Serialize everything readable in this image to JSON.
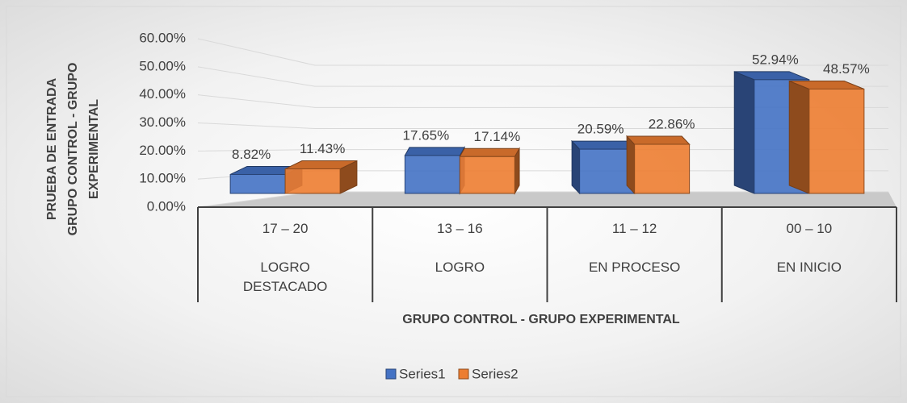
{
  "chart_data": {
    "type": "bar",
    "y_label_lines": [
      "PRUEBA DE ENTRADA",
      "GRUPO CONTROL - GRUPO",
      "EXPERIMENTAL"
    ],
    "x_label": "GRUPO CONTROL - GRUPO EXPERIMENTAL",
    "categories": [
      [
        "17 – 20",
        "LOGRO DESTACADO"
      ],
      [
        "13 – 16",
        "LOGRO"
      ],
      [
        "11 – 12",
        "EN PROCESO"
      ],
      [
        "00 – 10",
        "EN INICIO"
      ]
    ],
    "series": [
      {
        "name": "Series1",
        "color": "#4472c4",
        "values": [
          8.82,
          17.65,
          20.59,
          52.94
        ],
        "value_labels": [
          "8.82%",
          "17.65%",
          "20.59%",
          "52.94%"
        ]
      },
      {
        "name": "Series2",
        "color": "#ed7d31",
        "values": [
          11.43,
          17.14,
          22.86,
          48.57
        ],
        "value_labels": [
          "11.43%",
          "17.14%",
          "22.86%",
          "48.57%"
        ]
      }
    ],
    "ylim": [
      0,
      60
    ],
    "yticks": [
      {
        "value": 0,
        "label": "0.00%"
      },
      {
        "value": 10,
        "label": "10.00%"
      },
      {
        "value": 20,
        "label": "20.00%"
      },
      {
        "value": 30,
        "label": "30.00%"
      },
      {
        "value": 40,
        "label": "40.00%"
      },
      {
        "value": 50,
        "label": "50.00%"
      },
      {
        "value": 60,
        "label": "60.00%"
      }
    ],
    "grid": true,
    "legend": "bottom"
  }
}
